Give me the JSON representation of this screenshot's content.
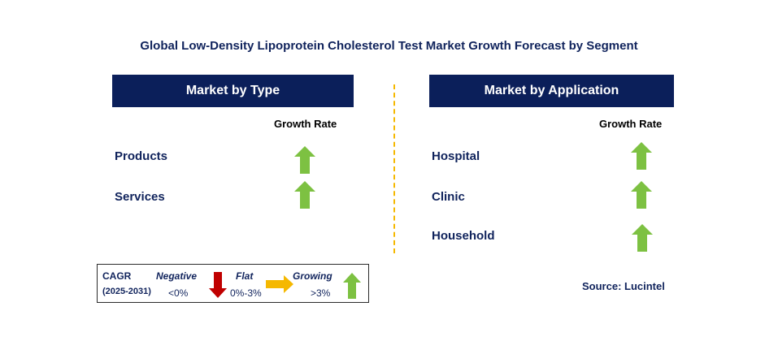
{
  "title": "Global Low-Density Lipoprotein Cholesterol Test Market Growth Forecast by Segment",
  "colors": {
    "header_bg": "#0b1f5a",
    "text_navy": "#10235c",
    "growing": "#7dc142",
    "negative": "#c00000",
    "flat": "#f5b800",
    "divider": "#f5b800"
  },
  "type_panel": {
    "header": "Market by Type",
    "growth_rate_label": "Growth Rate",
    "items": [
      {
        "label": "Products",
        "trend": "growing",
        "icon": "up-arrow-icon"
      },
      {
        "label": "Services",
        "trend": "growing",
        "icon": "up-arrow-icon"
      }
    ]
  },
  "application_panel": {
    "header": "Market by Application",
    "growth_rate_label": "Growth Rate",
    "items": [
      {
        "label": "Hospital",
        "trend": "growing",
        "icon": "up-arrow-icon"
      },
      {
        "label": "Clinic",
        "trend": "growing",
        "icon": "up-arrow-icon"
      },
      {
        "label": "Household",
        "trend": "growing",
        "icon": "up-arrow-icon"
      }
    ]
  },
  "legend": {
    "cagr_label": "CAGR",
    "period": "(2025-2031)",
    "negative": {
      "label": "Negative",
      "range": "<0%",
      "icon": "down-arrow-icon"
    },
    "flat": {
      "label": "Flat",
      "range": "0%-3%",
      "icon": "right-arrow-icon"
    },
    "growing": {
      "label": "Growing",
      "range": ">3%",
      "icon": "up-arrow-icon"
    }
  },
  "source": "Source: Lucintel"
}
